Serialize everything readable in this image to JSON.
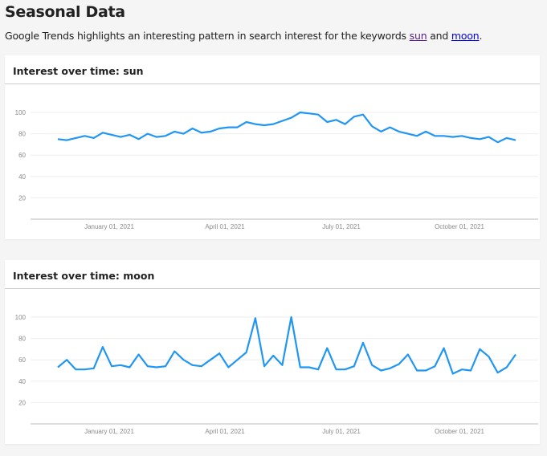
{
  "page": {
    "title": "Seasonal Data",
    "intro_prefix": "Google Trends highlights an interesting pattern in search interest for the keywords ",
    "intro_link1": "sun",
    "intro_mid": " and ",
    "intro_link2": "moon",
    "intro_suffix": "."
  },
  "colors": {
    "line": "#2196f3",
    "grid": "#eeeeee",
    "axis": "#bbbbbb",
    "visited_link": "#551a8b",
    "link": "#0000ee"
  },
  "cards": [
    {
      "title": "Interest over time: sun"
    },
    {
      "title": "Interest over time: moon"
    }
  ],
  "chart_data": [
    {
      "type": "line",
      "title": "Interest over time: sun",
      "xlabel": "",
      "ylabel": "",
      "ylim": [
        0,
        100
      ],
      "yticks": [
        20,
        40,
        60,
        80,
        100
      ],
      "xticks": [
        "January 01, 2021",
        "April 01, 2021",
        "July 01, 2021",
        "October 01, 2021"
      ],
      "grid": true,
      "series": [
        {
          "name": "sun",
          "values": [
            75,
            74,
            76,
            78,
            76,
            81,
            79,
            77,
            79,
            75,
            80,
            77,
            78,
            82,
            80,
            85,
            81,
            82,
            85,
            86,
            86,
            91,
            89,
            88,
            89,
            92,
            95,
            100,
            99,
            98,
            91,
            93,
            89,
            96,
            98,
            87,
            82,
            86,
            82,
            80,
            78,
            82,
            78,
            78,
            77,
            78,
            76,
            75,
            77,
            72,
            76,
            74
          ]
        }
      ]
    },
    {
      "type": "line",
      "title": "Interest over time: moon",
      "xlabel": "",
      "ylabel": "",
      "ylim": [
        0,
        100
      ],
      "yticks": [
        20,
        40,
        60,
        80,
        100
      ],
      "xticks": [
        "January 01, 2021",
        "April 01, 2021",
        "July 01, 2021",
        "October 01, 2021"
      ],
      "grid": true,
      "series": [
        {
          "name": "moon",
          "values": [
            53,
            60,
            51,
            51,
            52,
            72,
            54,
            55,
            53,
            65,
            54,
            53,
            54,
            68,
            60,
            55,
            54,
            60,
            66,
            53,
            60,
            67,
            99,
            54,
            64,
            55,
            100,
            53,
            53,
            51,
            71,
            51,
            51,
            54,
            76,
            55,
            50,
            52,
            56,
            65,
            50,
            50,
            54,
            71,
            47,
            51,
            50,
            70,
            63,
            48,
            53,
            65
          ]
        }
      ]
    }
  ]
}
